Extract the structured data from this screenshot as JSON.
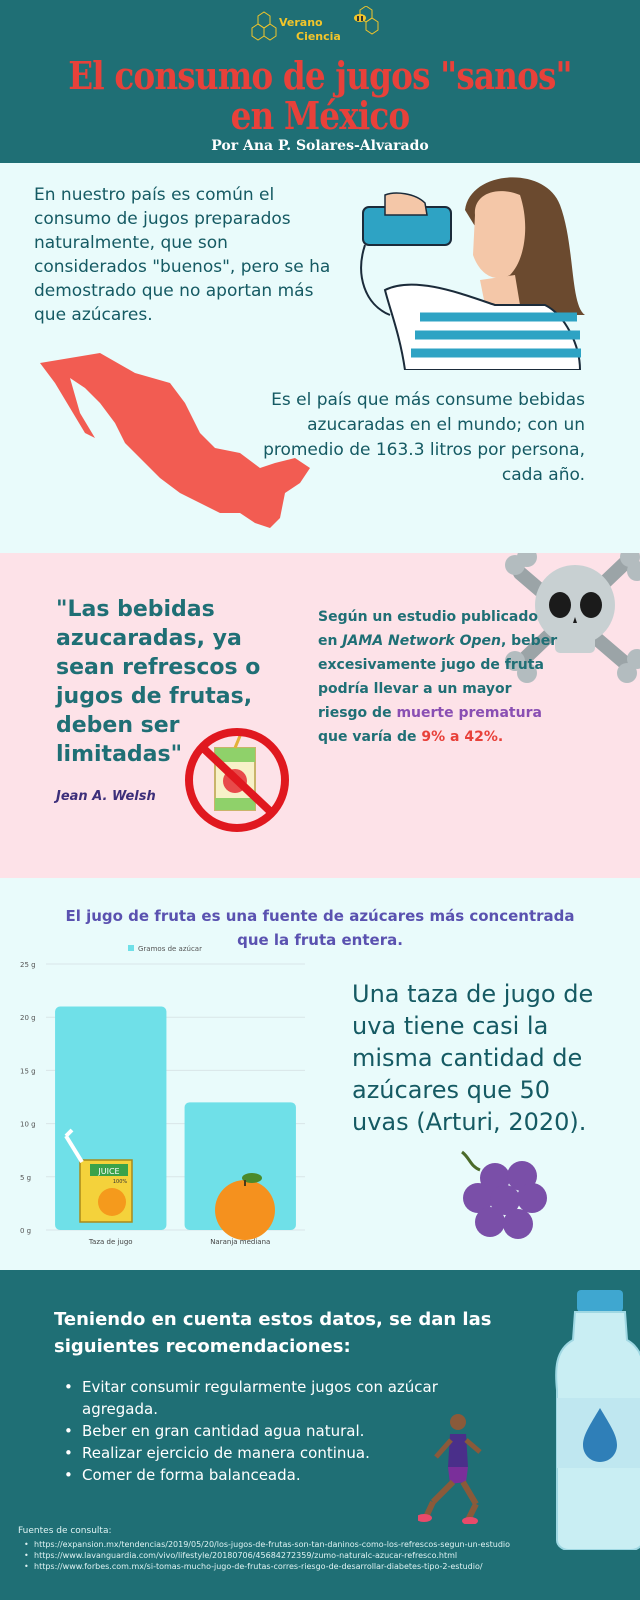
{
  "header": {
    "logo_top": "Verano",
    "logo_bottom": "Ciencia",
    "title": "El consumo de jugos \"sanos\" en México",
    "author": "Por Ana P. Solares-Alvarado"
  },
  "section1": {
    "intro": "En nuestro país es común el consumo de jugos preparados naturalmente, que son considerados \"buenos\", pero se ha demostrado que no aportan más que azúcares.",
    "country_fact": "Es el país que más consume bebidas azucaradas en el mundo; con un promedio de 163.3 litros por persona, cada año."
  },
  "section2": {
    "quote": "\"Las bebidas azucaradas, ya sean refrescos o jugos de frutas, deben ser limitadas\"",
    "quote_author": "Jean A. Welsh",
    "study_prefix": "Según un estudio publicado en ",
    "study_journal": "JAMA Network Open",
    "study_middle": ", beber excesivamente jugo de fruta podría llevar a un mayor riesgo de ",
    "study_death": "muerte prematura",
    "study_range_pre": " que varía de ",
    "study_low": "9%",
    "study_mid": " a ",
    "study_high": "42%."
  },
  "section3": {
    "heading": "El jugo de fruta es una fuente de azúcares más concentrada que la fruta entera.",
    "grapes_text": "Una taza de jugo de uva tiene casi la misma cantidad de azúcares que 50 uvas (Arturi, 2020).",
    "juice_box_label": "JUICE",
    "juice_box_sub": "100%"
  },
  "chart_data": {
    "type": "bar",
    "categories": [
      "Taza de jugo",
      "Naranja mediana"
    ],
    "series": [
      {
        "name": "Gramos de azúcar",
        "values": [
          21,
          12
        ]
      }
    ],
    "ylim": [
      0,
      25
    ],
    "yticks": [
      "0 g",
      "5 g",
      "10 g",
      "15 g",
      "20 g",
      "25 g"
    ],
    "tick_values": [
      0,
      5,
      10,
      15,
      20,
      25
    ],
    "legend": "top",
    "grid": true,
    "bar_color": "#6fe0e8"
  },
  "section4": {
    "title": "Teniendo en cuenta estos datos, se dan las siguientes recomendaciones:",
    "items": [
      "Evitar consumir regularmente jugos con azúcar agregada.",
      "Beber en gran cantidad agua natural.",
      "Realizar ejercicio de manera continua.",
      "Comer de forma balanceada."
    ],
    "sources_heading": "Fuentes de consulta:",
    "sources": [
      "https://expansion.mx/tendencias/2019/05/20/los-jugos-de-frutas-son-tan-daninos-como-los-refrescos-segun-un-estudio",
      "https://www.lavanguardia.com/vivo/lifestyle/20180706/45684272359/zumo-naturalc-azucar-refresco.html",
      "https://www.forbes.com.mx/si-tomas-mucho-jugo-de-frutas-corres-riesgo-de-desarrollar-diabetes-tipo-2-estudio/"
    ]
  },
  "colors": {
    "teal_dark": "#1f6f75",
    "accent_red": "#e8413a",
    "pink_bg": "#fde2e8",
    "light_bg": "#e9fbfb"
  }
}
